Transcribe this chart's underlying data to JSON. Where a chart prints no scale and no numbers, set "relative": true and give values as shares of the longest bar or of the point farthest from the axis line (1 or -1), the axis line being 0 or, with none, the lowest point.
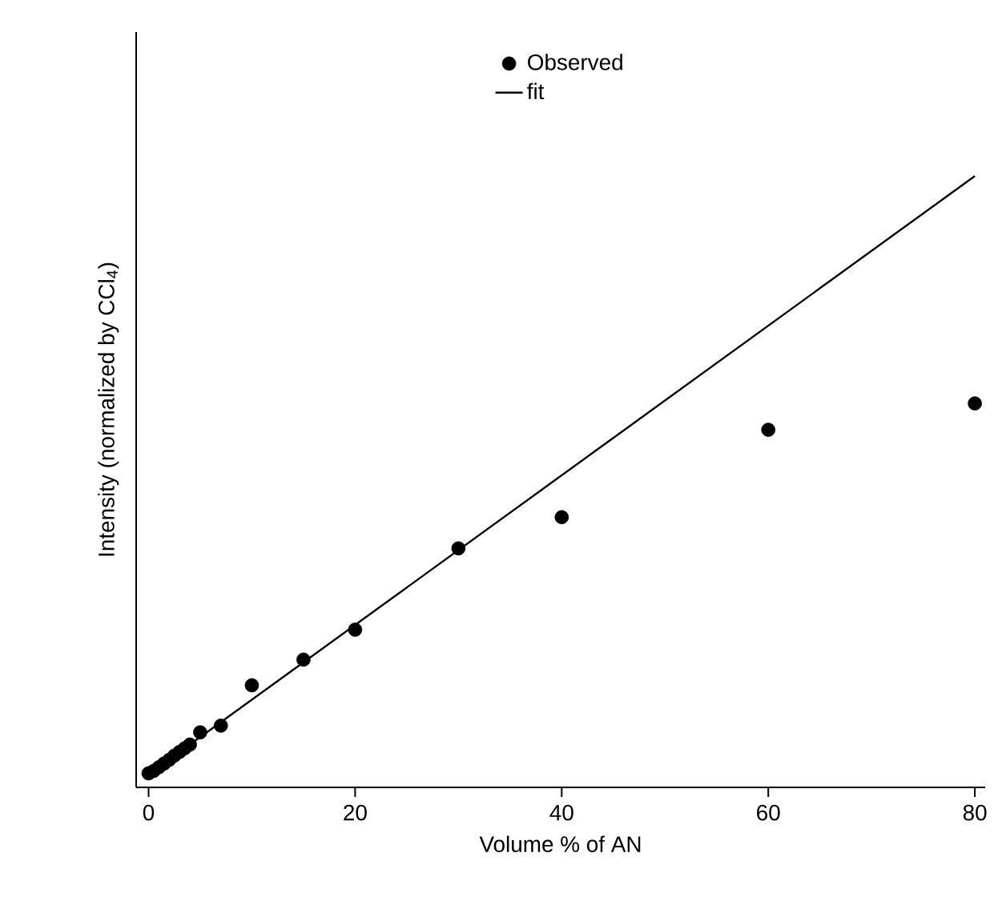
{
  "chart_data": {
    "type": "scatter",
    "xlabel": "Volume % of AN",
    "ylabel": "Intensity (normalized by CCl$_{4}$)",
    "relative": true,
    "xlim": [
      -1.2,
      81
    ],
    "xticks": [
      0,
      20,
      40,
      60,
      80
    ],
    "legend": "top",
    "grid": false,
    "series": [
      {
        "name": "Observed",
        "color": "#000000",
        "marker": "circle",
        "x": [
          0,
          0.5,
          1,
          1.5,
          2,
          2.5,
          3,
          3.5,
          4,
          5,
          7,
          10,
          15,
          20,
          30,
          40,
          60,
          80
        ],
        "values": [
          0.023,
          0.027,
          0.033,
          0.039,
          0.045,
          0.052,
          0.058,
          0.064,
          0.07,
          0.09,
          0.101,
          0.167,
          0.209,
          0.258,
          0.391,
          0.442,
          0.585,
          0.628
        ]
      },
      {
        "name": "fit",
        "type": "line",
        "color": "#000000",
        "marker": "none",
        "line_style": "solid",
        "x": [
          0,
          80
        ],
        "values": [
          0.021,
          1.0
        ]
      }
    ]
  }
}
